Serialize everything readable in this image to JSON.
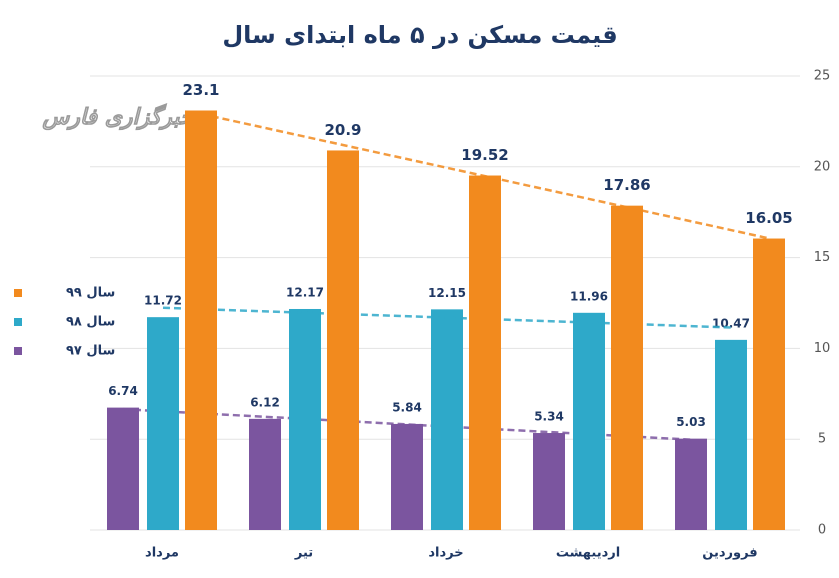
{
  "chart_data": {
    "type": "bar",
    "title": "قیمت مسکن در ۵ ماه ابتدای سال",
    "watermark": "خبرگزاری فارس",
    "categories": [
      "مرداد",
      "تیر",
      "خرداد",
      "اردیبهشت",
      "فروردین"
    ],
    "series": [
      {
        "name": "سال ۹۷",
        "color": "#7b559f",
        "values": [
          6.74,
          6.12,
          5.84,
          5.34,
          5.03
        ]
      },
      {
        "name": "سال ۹۸",
        "color": "#2ea9c9",
        "values": [
          11.72,
          12.17,
          12.15,
          11.96,
          10.47
        ]
      },
      {
        "name": "سال ۹۹",
        "color": "#f28a1e",
        "values": [
          23.1,
          20.9,
          19.52,
          17.86,
          16.05
        ]
      }
    ],
    "ylim": [
      0,
      25
    ],
    "yticks": [
      0,
      5,
      10,
      15,
      20,
      25
    ],
    "grid": true,
    "trendline": true,
    "legend": "left"
  }
}
